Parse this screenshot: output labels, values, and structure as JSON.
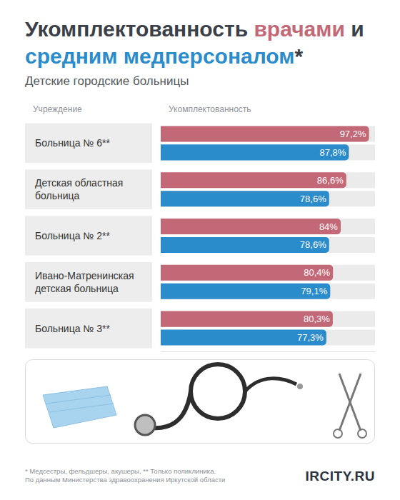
{
  "chart_data": {
    "type": "bar",
    "title": "Укомплектованность врачами и средним медперсоналом*",
    "subtitle": "Детские городские больницы",
    "ylabel": "Учреждение",
    "xlabel": "Укомплектованность",
    "orientation": "horizontal",
    "categories": [
      "Больница № 6**",
      "Детская областная больница",
      "Больница № 2**",
      "Ивано-Матренинская детская больница",
      "Больница № 3**"
    ],
    "series": [
      {
        "name": "врачами",
        "color": "#c26877",
        "values": [
          97.2,
          86.6,
          84,
          80.4,
          80.3
        ],
        "value_labels": [
          "97,2%",
          "86,6%",
          "84%",
          "80,4%",
          "80,3%"
        ]
      },
      {
        "name": "средним медперсоналом",
        "color": "#2b8ccb",
        "values": [
          87.8,
          78.6,
          78.6,
          79.1,
          77.3
        ],
        "value_labels": [
          "87,8%",
          "78,6%",
          "78,6%",
          "79,1%",
          "77,3%"
        ]
      }
    ],
    "xlim": [
      0,
      100
    ],
    "xticks": [],
    "tick_labels": false,
    "grid": false,
    "stacked": false,
    "data_labels": true,
    "notes": [
      "* Медсестры, фельдшеры, акушеры, ** Только поликлиника.",
      "По данным Министерства здравоохранения Иркутской области"
    ],
    "logo": "IRCITY.RU"
  }
}
